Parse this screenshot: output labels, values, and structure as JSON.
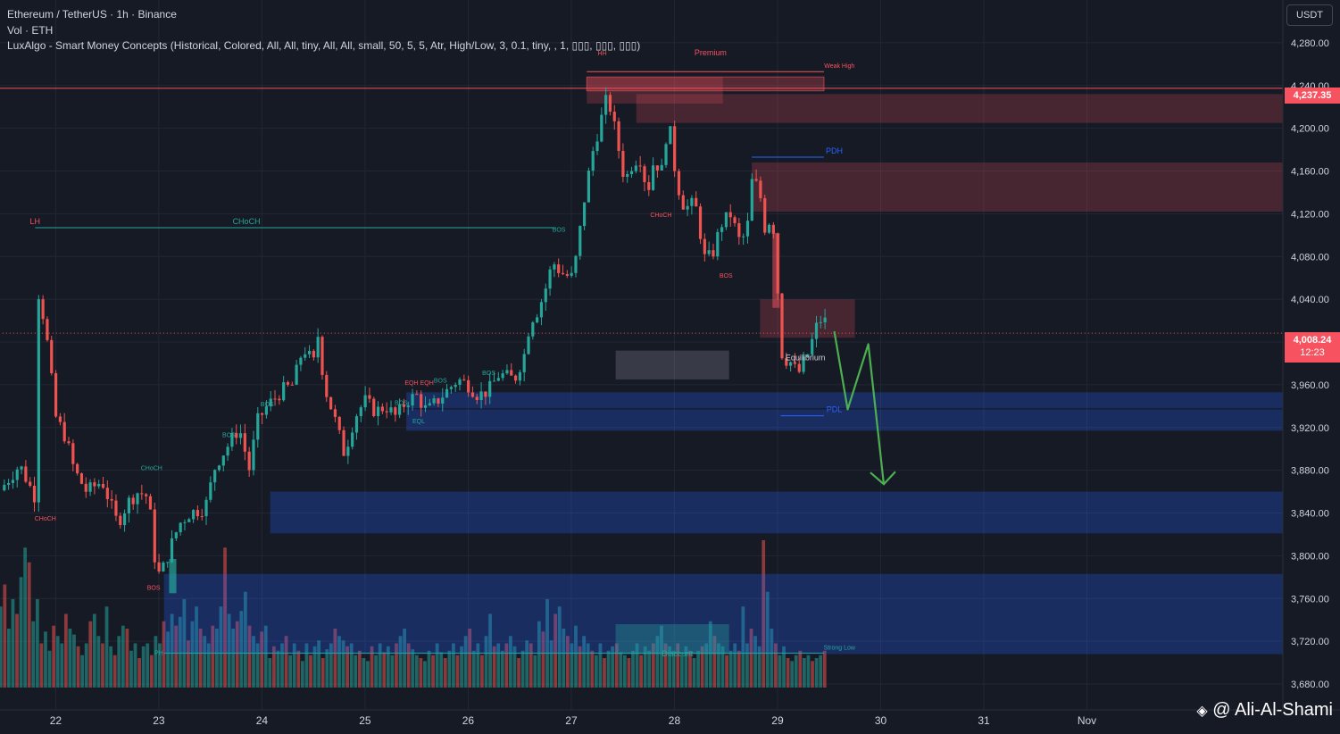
{
  "header": {
    "title": "Ethereum / TetherUS · 1h · Binance",
    "vol": "Vol · ETH",
    "indicator": "LuxAlgo - Smart Money Concepts (Historical, Colored, All, All, tiny, All, All, small, 50, 5, 5, Atr, High/Low, 3, 0.1, tiny, , 1, ▯▯▯, ▯▯▯, ▯▯▯)"
  },
  "currency_button": "USDT",
  "price_labels": {
    "last": "4,237.35",
    "current": "4,008.24",
    "countdown": "12:23"
  },
  "watermark": "@ Ali-Al-Shami",
  "colors": {
    "bg": "#161a25",
    "up": "#26a69a",
    "down": "#ef5350",
    "text": "#d1d4dc",
    "blue_zone": "#2962ff",
    "red_zone": "#f7525f",
    "arrow": "#4caf50"
  },
  "chart_data": {
    "type": "candlestick",
    "symbol": "ETH/USDT",
    "timeframe": "1h",
    "ylim": [
      3660,
      4320
    ],
    "y_ticks": [
      3680,
      3720,
      3760,
      3800,
      3840,
      3880,
      3920,
      3960,
      4000,
      4040,
      4080,
      4120,
      4160,
      4200,
      4240,
      4280
    ],
    "y_tick_labels": [
      "3,680.00",
      "3,720.00",
      "3,760.00",
      "3,800.00",
      "3,840.00",
      "3,880.00",
      "3,920.00",
      "3,960.00",
      "4,000.00",
      "4,040.00",
      "4,080.00",
      "4,120.00",
      "4,160.00",
      "4,200.00",
      "4,240.00",
      "4,280.00"
    ],
    "x_tick_labels": [
      "22",
      "23",
      "24",
      "25",
      "26",
      "27",
      "28",
      "29",
      "30",
      "31",
      "Nov"
    ],
    "x_ticks_day": [
      0,
      1,
      2,
      3,
      4,
      5,
      6,
      7,
      8,
      9,
      10
    ],
    "xlim": [
      -0.54,
      11.9
    ],
    "last_day": 7.48,
    "close_path": [
      [
        -0.55,
        3860
      ],
      [
        -0.35,
        3885
      ],
      [
        -0.2,
        3855
      ],
      [
        -0.27,
        4015
      ],
      [
        -0.25,
        4085
      ],
      [
        -0.1,
        4015
      ],
      [
        0.0,
        3930
      ],
      [
        0.1,
        3910
      ],
      [
        0.18,
        3880
      ],
      [
        0.3,
        3860
      ],
      [
        0.45,
        3870
      ],
      [
        0.6,
        3830
      ],
      [
        0.7,
        3850
      ],
      [
        0.8,
        3860
      ],
      [
        0.9,
        3855
      ],
      [
        0.98,
        3780
      ],
      [
        1.05,
        3790
      ],
      [
        1.12,
        3810
      ],
      [
        1.2,
        3830
      ],
      [
        1.3,
        3840
      ],
      [
        1.45,
        3845
      ],
      [
        1.55,
        3885
      ],
      [
        1.65,
        3900
      ],
      [
        1.78,
        3920
      ],
      [
        1.88,
        3880
      ],
      [
        1.95,
        3925
      ],
      [
        2.05,
        3940
      ],
      [
        2.2,
        3955
      ],
      [
        2.3,
        3960
      ],
      [
        2.4,
        3995
      ],
      [
        2.5,
        3980
      ],
      [
        2.55,
        4010
      ],
      [
        2.6,
        3960
      ],
      [
        2.7,
        3930
      ],
      [
        2.8,
        3895
      ],
      [
        2.9,
        3930
      ],
      [
        3.0,
        3945
      ],
      [
        3.1,
        3935
      ],
      [
        3.2,
        3940
      ],
      [
        3.3,
        3930
      ],
      [
        3.4,
        3945
      ],
      [
        3.5,
        3950
      ],
      [
        3.6,
        3935
      ],
      [
        3.7,
        3945
      ],
      [
        3.8,
        3955
      ],
      [
        3.9,
        3965
      ],
      [
        4.0,
        3960
      ],
      [
        4.1,
        3950
      ],
      [
        4.2,
        3955
      ],
      [
        4.3,
        3970
      ],
      [
        4.45,
        3965
      ],
      [
        4.55,
        3990
      ],
      [
        4.6,
        4020
      ],
      [
        4.68,
        4030
      ],
      [
        4.75,
        4050
      ],
      [
        4.82,
        4075
      ],
      [
        4.9,
        4065
      ],
      [
        5.0,
        4060
      ],
      [
        5.05,
        4080
      ],
      [
        5.12,
        4130
      ],
      [
        5.2,
        4175
      ],
      [
        5.28,
        4205
      ],
      [
        5.35,
        4230
      ],
      [
        5.4,
        4210
      ],
      [
        5.46,
        4180
      ],
      [
        5.52,
        4150
      ],
      [
        5.58,
        4165
      ],
      [
        5.66,
        4175
      ],
      [
        5.74,
        4140
      ],
      [
        5.8,
        4170
      ],
      [
        5.88,
        4160
      ],
      [
        5.94,
        4210
      ],
      [
        6.02,
        4150
      ],
      [
        6.1,
        4125
      ],
      [
        6.2,
        4130
      ],
      [
        6.3,
        4075
      ],
      [
        6.38,
        4085
      ],
      [
        6.45,
        4110
      ],
      [
        6.55,
        4120
      ],
      [
        6.62,
        4095
      ],
      [
        6.7,
        4100
      ],
      [
        6.75,
        4150
      ],
      [
        6.82,
        4145
      ],
      [
        6.88,
        4105
      ],
      [
        6.95,
        4120
      ],
      [
        7.0,
        4050
      ],
      [
        7.05,
        3980
      ],
      [
        7.1,
        3985
      ],
      [
        7.2,
        3970
      ],
      [
        7.3,
        3990
      ],
      [
        7.38,
        4015
      ],
      [
        7.45,
        4025
      ],
      [
        7.48,
        4008
      ]
    ],
    "volume": {
      "max": 1,
      "values": [
        0.55,
        0.7,
        0.4,
        0.6,
        0.5,
        0.75,
        0.95,
        0.85,
        0.45,
        0.6,
        0.3,
        0.38,
        0.25,
        0.42,
        0.35,
        0.3,
        0.5,
        0.4,
        0.36,
        0.28,
        0.22,
        0.3,
        0.45,
        0.5,
        0.35,
        0.3,
        0.55,
        0.28,
        0.22,
        0.35,
        0.42,
        0.4,
        0.25,
        0.3,
        0.2,
        0.28,
        0.3,
        0.22,
        0.35,
        0.3,
        0.45,
        0.38,
        0.5,
        0.42,
        0.48,
        0.6,
        0.32,
        0.45,
        0.55,
        0.4,
        0.35,
        0.3,
        0.42,
        0.4,
        0.55,
        0.95,
        0.5,
        0.4,
        0.45,
        0.52,
        0.65,
        0.42,
        0.35,
        0.3,
        0.38,
        0.42,
        0.2,
        0.28,
        0.25,
        0.3,
        0.35,
        0.22,
        0.3,
        0.25,
        0.18,
        0.3,
        0.22,
        0.28,
        0.32,
        0.2,
        0.26,
        0.3,
        0.4,
        0.35,
        0.32,
        0.28,
        0.3,
        0.22,
        0.25,
        0.2,
        0.18,
        0.28,
        0.22,
        0.3,
        0.24,
        0.28,
        0.22,
        0.3,
        0.35,
        0.4,
        0.3,
        0.26,
        0.22,
        0.2,
        0.18,
        0.25,
        0.22,
        0.3,
        0.24,
        0.2,
        0.25,
        0.3,
        0.22,
        0.28,
        0.35,
        0.4,
        0.25,
        0.3,
        0.22,
        0.35,
        0.5,
        0.28,
        0.3,
        0.25,
        0.3,
        0.35,
        0.28,
        0.2,
        0.25,
        0.32,
        0.3,
        0.22,
        0.45,
        0.38,
        0.6,
        0.32,
        0.5,
        0.55,
        0.4,
        0.35,
        0.3,
        0.42,
        0.28,
        0.35,
        0.3,
        0.25,
        0.22,
        0.3,
        0.2,
        0.25,
        0.28,
        0.3,
        0.24,
        0.22,
        0.2,
        0.25,
        0.3,
        0.22,
        0.28,
        0.25,
        0.3,
        0.35,
        0.42,
        0.3,
        0.28,
        0.25,
        0.3,
        0.22,
        0.28,
        0.25,
        0.2,
        0.25,
        0.28,
        0.3,
        0.45,
        0.35,
        0.3,
        0.28,
        0.22,
        0.25,
        0.3,
        0.25,
        0.55,
        0.3,
        0.4,
        0.35,
        0.28,
        1.0,
        0.65,
        0.4,
        0.3,
        0.22,
        0.28,
        0.2,
        0.18,
        0.22,
        0.25,
        0.2,
        0.22,
        0.18,
        0.2,
        0.22,
        0.25
      ]
    },
    "zones": [
      {
        "kind": "premium",
        "x0": 5.15,
        "x1": 7.45,
        "y0": 4235,
        "y1": 4248
      },
      {
        "kind": "supply",
        "x0": 5.15,
        "x1": 6.47,
        "y0": 4223,
        "y1": 4248
      },
      {
        "kind": "supply",
        "x0": 5.63,
        "x1": 11.9,
        "y0": 4205,
        "y1": 4232
      },
      {
        "kind": "supply",
        "x0": 6.75,
        "x1": 11.9,
        "y0": 4122,
        "y1": 4168
      },
      {
        "kind": "supply-small",
        "x0": 6.95,
        "x1": 7.02,
        "y0": 4032,
        "y1": 4102
      },
      {
        "kind": "supply",
        "x0": 6.83,
        "x1": 7.75,
        "y0": 4004,
        "y1": 4040
      },
      {
        "kind": "equilibrium",
        "x0": 5.43,
        "x1": 6.53,
        "y0": 3965,
        "y1": 3992
      },
      {
        "kind": "demand",
        "x0": 3.4,
        "x1": 11.9,
        "y0": 3938,
        "y1": 3953
      },
      {
        "kind": "demand",
        "x0": 3.4,
        "x1": 11.9,
        "y0": 3917,
        "y1": 3937
      },
      {
        "kind": "demand",
        "x0": 2.08,
        "x1": 11.9,
        "y0": 3821,
        "y1": 3860
      },
      {
        "kind": "demand",
        "x0": 1.05,
        "x1": 11.9,
        "y0": 3708,
        "y1": 3783
      },
      {
        "kind": "discount",
        "x0": 5.43,
        "x1": 6.53,
        "y0": 3708,
        "y1": 3736
      },
      {
        "kind": "ob-green",
        "x0": 1.1,
        "x1": 1.17,
        "y0": 3765,
        "y1": 3797
      }
    ],
    "levels": [
      {
        "label": "LH",
        "price": 4107,
        "x0": -0.2,
        "x1": 4.85,
        "color": "#26a69a",
        "text_color": "#f7525f",
        "label_day": -0.2,
        "style": "solid"
      },
      {
        "label": "CHoCH",
        "price": 4107,
        "x0": 1.85,
        "x1": 1.85,
        "color": "#26a69a",
        "label_day": 1.85,
        "style": "label"
      },
      {
        "label": "PDH",
        "price": 4173,
        "x0": 6.75,
        "x1": 7.45,
        "color": "#2962ff",
        "label_day": 7.55,
        "style": "solid"
      },
      {
        "label": "PDL",
        "price": 3931,
        "x0": 7.03,
        "x1": 7.45,
        "color": "#2962ff",
        "label_day": 7.55,
        "style": "solid"
      },
      {
        "label": "Weak High",
        "price": 4253,
        "x0": 5.15,
        "x1": 7.45,
        "color": "#f7525f",
        "label_day": 7.6,
        "style": "solid"
      },
      {
        "label": "Strong Low",
        "price": 3709,
        "x0": 1.05,
        "x1": 7.45,
        "color": "#26a69a",
        "label_day": 7.6,
        "style": "solid"
      },
      {
        "label": "",
        "price": 4237.35,
        "x0": -0.55,
        "x1": 11.9,
        "color": "#f7525f",
        "style": "solid"
      },
      {
        "label": "",
        "price": 4008.24,
        "x0": -0.55,
        "x1": 11.9,
        "color": "#f7525f",
        "style": "dotted"
      }
    ],
    "annotations": [
      {
        "text": "HH",
        "day": 5.3,
        "price": 4268,
        "color": "#f7525f"
      },
      {
        "text": "Premium",
        "day": 6.35,
        "price": 4268,
        "color": "#f7525f"
      },
      {
        "text": "CHoCH",
        "day": -0.1,
        "price": 3833,
        "color": "#f7525f"
      },
      {
        "text": "CHoCH",
        "day": 0.93,
        "price": 3880,
        "color": "#26a69a"
      },
      {
        "text": "BOS",
        "day": 0.95,
        "price": 3768,
        "color": "#f7525f"
      },
      {
        "text": "BOS",
        "day": 1.68,
        "price": 3911,
        "color": "#26a69a"
      },
      {
        "text": "BOS",
        "day": 2.05,
        "price": 3940,
        "color": "#26a69a"
      },
      {
        "text": "BOS",
        "day": 3.35,
        "price": 3941,
        "color": "#26a69a"
      },
      {
        "text": "EQH",
        "day": 3.45,
        "price": 3960,
        "color": "#f7525f"
      },
      {
        "text": "EQH",
        "day": 3.6,
        "price": 3960,
        "color": "#f7525f"
      },
      {
        "text": "BOS",
        "day": 3.73,
        "price": 3962,
        "color": "#26a69a"
      },
      {
        "text": "BOS",
        "day": 4.2,
        "price": 3969,
        "color": "#26a69a"
      },
      {
        "text": "EQL",
        "day": 3.52,
        "price": 3924,
        "color": "#26a69a"
      },
      {
        "text": "BOS",
        "day": 4.88,
        "price": 4103,
        "color": "#26a69a"
      },
      {
        "text": "CHoCH",
        "day": 5.87,
        "price": 4117,
        "color": "#f7525f"
      },
      {
        "text": "BOS",
        "day": 6.5,
        "price": 4060,
        "color": "#f7525f"
      },
      {
        "text": "Equilibrium",
        "day": 7.27,
        "price": 3983,
        "color": "#d1d4dc"
      },
      {
        "text": "Discount",
        "day": 6.03,
        "price": 3706,
        "color": "#26a69a"
      },
      {
        "text": "PH",
        "day": 1.0,
        "price": 3707,
        "color": "#26a69a"
      }
    ],
    "projection": [
      [
        7.55,
        4010
      ],
      [
        7.68,
        3937
      ],
      [
        7.88,
        3998
      ],
      [
        8.03,
        3867
      ]
    ]
  }
}
